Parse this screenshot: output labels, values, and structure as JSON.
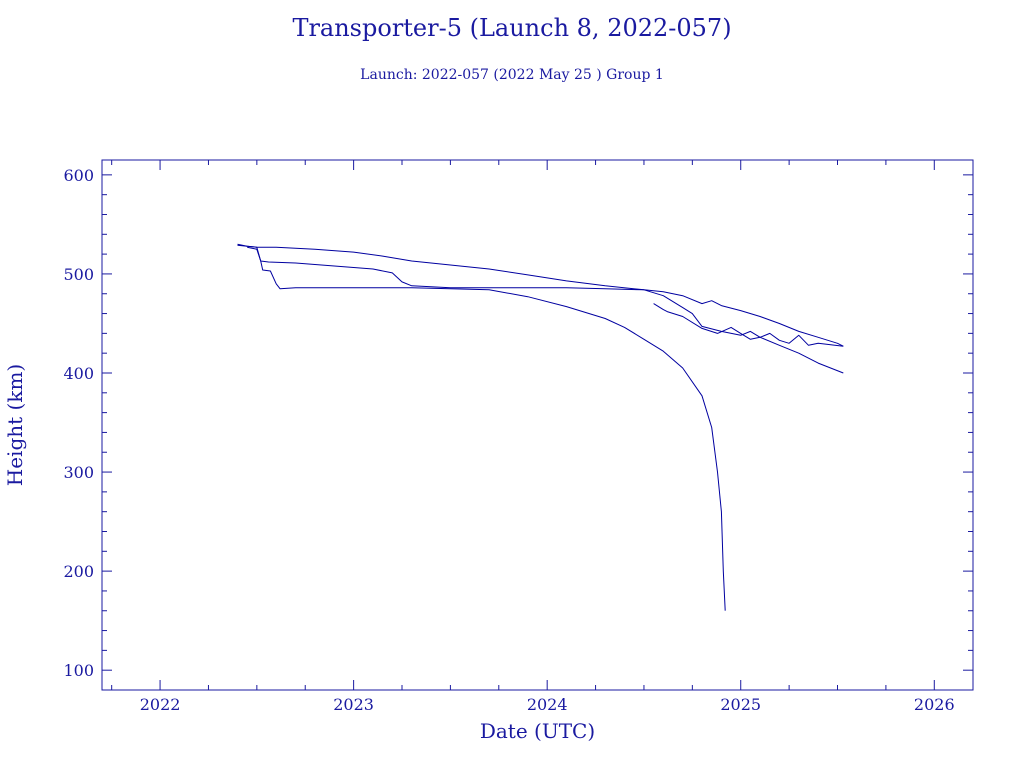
{
  "chart_data": {
    "type": "line",
    "title": "Transporter-5 (Launch 8, 2022-057)",
    "subtitle": "Launch: 2022-057  (2022 May 25 )  Group 1",
    "xlabel": "Date (UTC)",
    "ylabel": "Height (km)",
    "xlim": [
      2021.7,
      2026.2
    ],
    "ylim": [
      80,
      615
    ],
    "x_ticks": [
      2022,
      2023,
      2024,
      2025,
      2026
    ],
    "x_tick_labels": [
      "2022",
      "2023",
      "2024",
      "2025",
      "2026"
    ],
    "y_ticks": [
      100,
      200,
      300,
      400,
      500,
      600
    ],
    "y_tick_labels": [
      "100",
      "200",
      "300",
      "400",
      "500",
      "600"
    ],
    "grid": false,
    "line_color": "#0000a0",
    "axis_color": "#1a1aa0",
    "series": [
      {
        "x": [
          2022.4,
          2022.45,
          2022.5,
          2022.6,
          2022.8,
          2023.0,
          2023.15,
          2023.3,
          2023.5,
          2023.7,
          2023.9,
          2024.1,
          2024.3,
          2024.5,
          2024.55,
          2024.6,
          2024.7,
          2024.8,
          2024.85,
          2024.9,
          2025.0,
          2025.1,
          2025.2,
          2025.3,
          2025.4,
          2025.5,
          2025.53
        ],
        "y": [
          530,
          528,
          527,
          527,
          525,
          522,
          518,
          513,
          509,
          505,
          499,
          493,
          488,
          484,
          483,
          482,
          478,
          470,
          473,
          468,
          463,
          457,
          450,
          442,
          436,
          430,
          427
        ]
      },
      {
        "x": [
          2022.45,
          2022.5,
          2022.52,
          2022.56,
          2022.7,
          2022.9,
          2023.1,
          2023.2,
          2023.25,
          2023.3,
          2023.5,
          2023.7,
          2023.9,
          2024.1,
          2024.3,
          2024.5,
          2024.6,
          2024.7,
          2024.75,
          2024.8,
          2024.9,
          2025.0,
          2025.05,
          2025.1,
          2025.15,
          2025.2,
          2025.25,
          2025.3,
          2025.35,
          2025.4,
          2025.53
        ],
        "y": [
          527,
          525,
          513,
          512,
          511,
          508,
          505,
          501,
          492,
          488,
          486,
          486,
          486,
          486,
          485,
          484,
          478,
          466,
          460,
          447,
          442,
          438,
          442,
          436,
          440,
          433,
          430,
          438,
          428,
          430,
          427
        ]
      },
      {
        "x": [
          2022.4,
          2022.45,
          2022.5,
          2022.52,
          2022.53,
          2022.57,
          2022.6,
          2022.62,
          2022.7,
          2022.9,
          2023.1,
          2023.3,
          2023.5,
          2023.7,
          2023.9,
          2024.1,
          2024.3,
          2024.4,
          2024.5,
          2024.6,
          2024.7,
          2024.8,
          2024.85,
          2024.88,
          2024.9,
          2024.91,
          2024.92
        ],
        "y": [
          529,
          528,
          527,
          513,
          504,
          503,
          490,
          485,
          486,
          486,
          486,
          486,
          485,
          484,
          477,
          467,
          455,
          446,
          434,
          422,
          405,
          377,
          345,
          300,
          260,
          200,
          160
        ]
      },
      {
        "x": [
          2024.55,
          2024.6,
          2024.62,
          2024.7,
          2024.8,
          2024.88,
          2024.95,
          2025.0,
          2025.05,
          2025.1,
          2025.2,
          2025.3,
          2025.4,
          2025.53
        ],
        "y": [
          470,
          464,
          462,
          457,
          445,
          440,
          446,
          440,
          434,
          436,
          428,
          420,
          410,
          400
        ]
      }
    ]
  }
}
